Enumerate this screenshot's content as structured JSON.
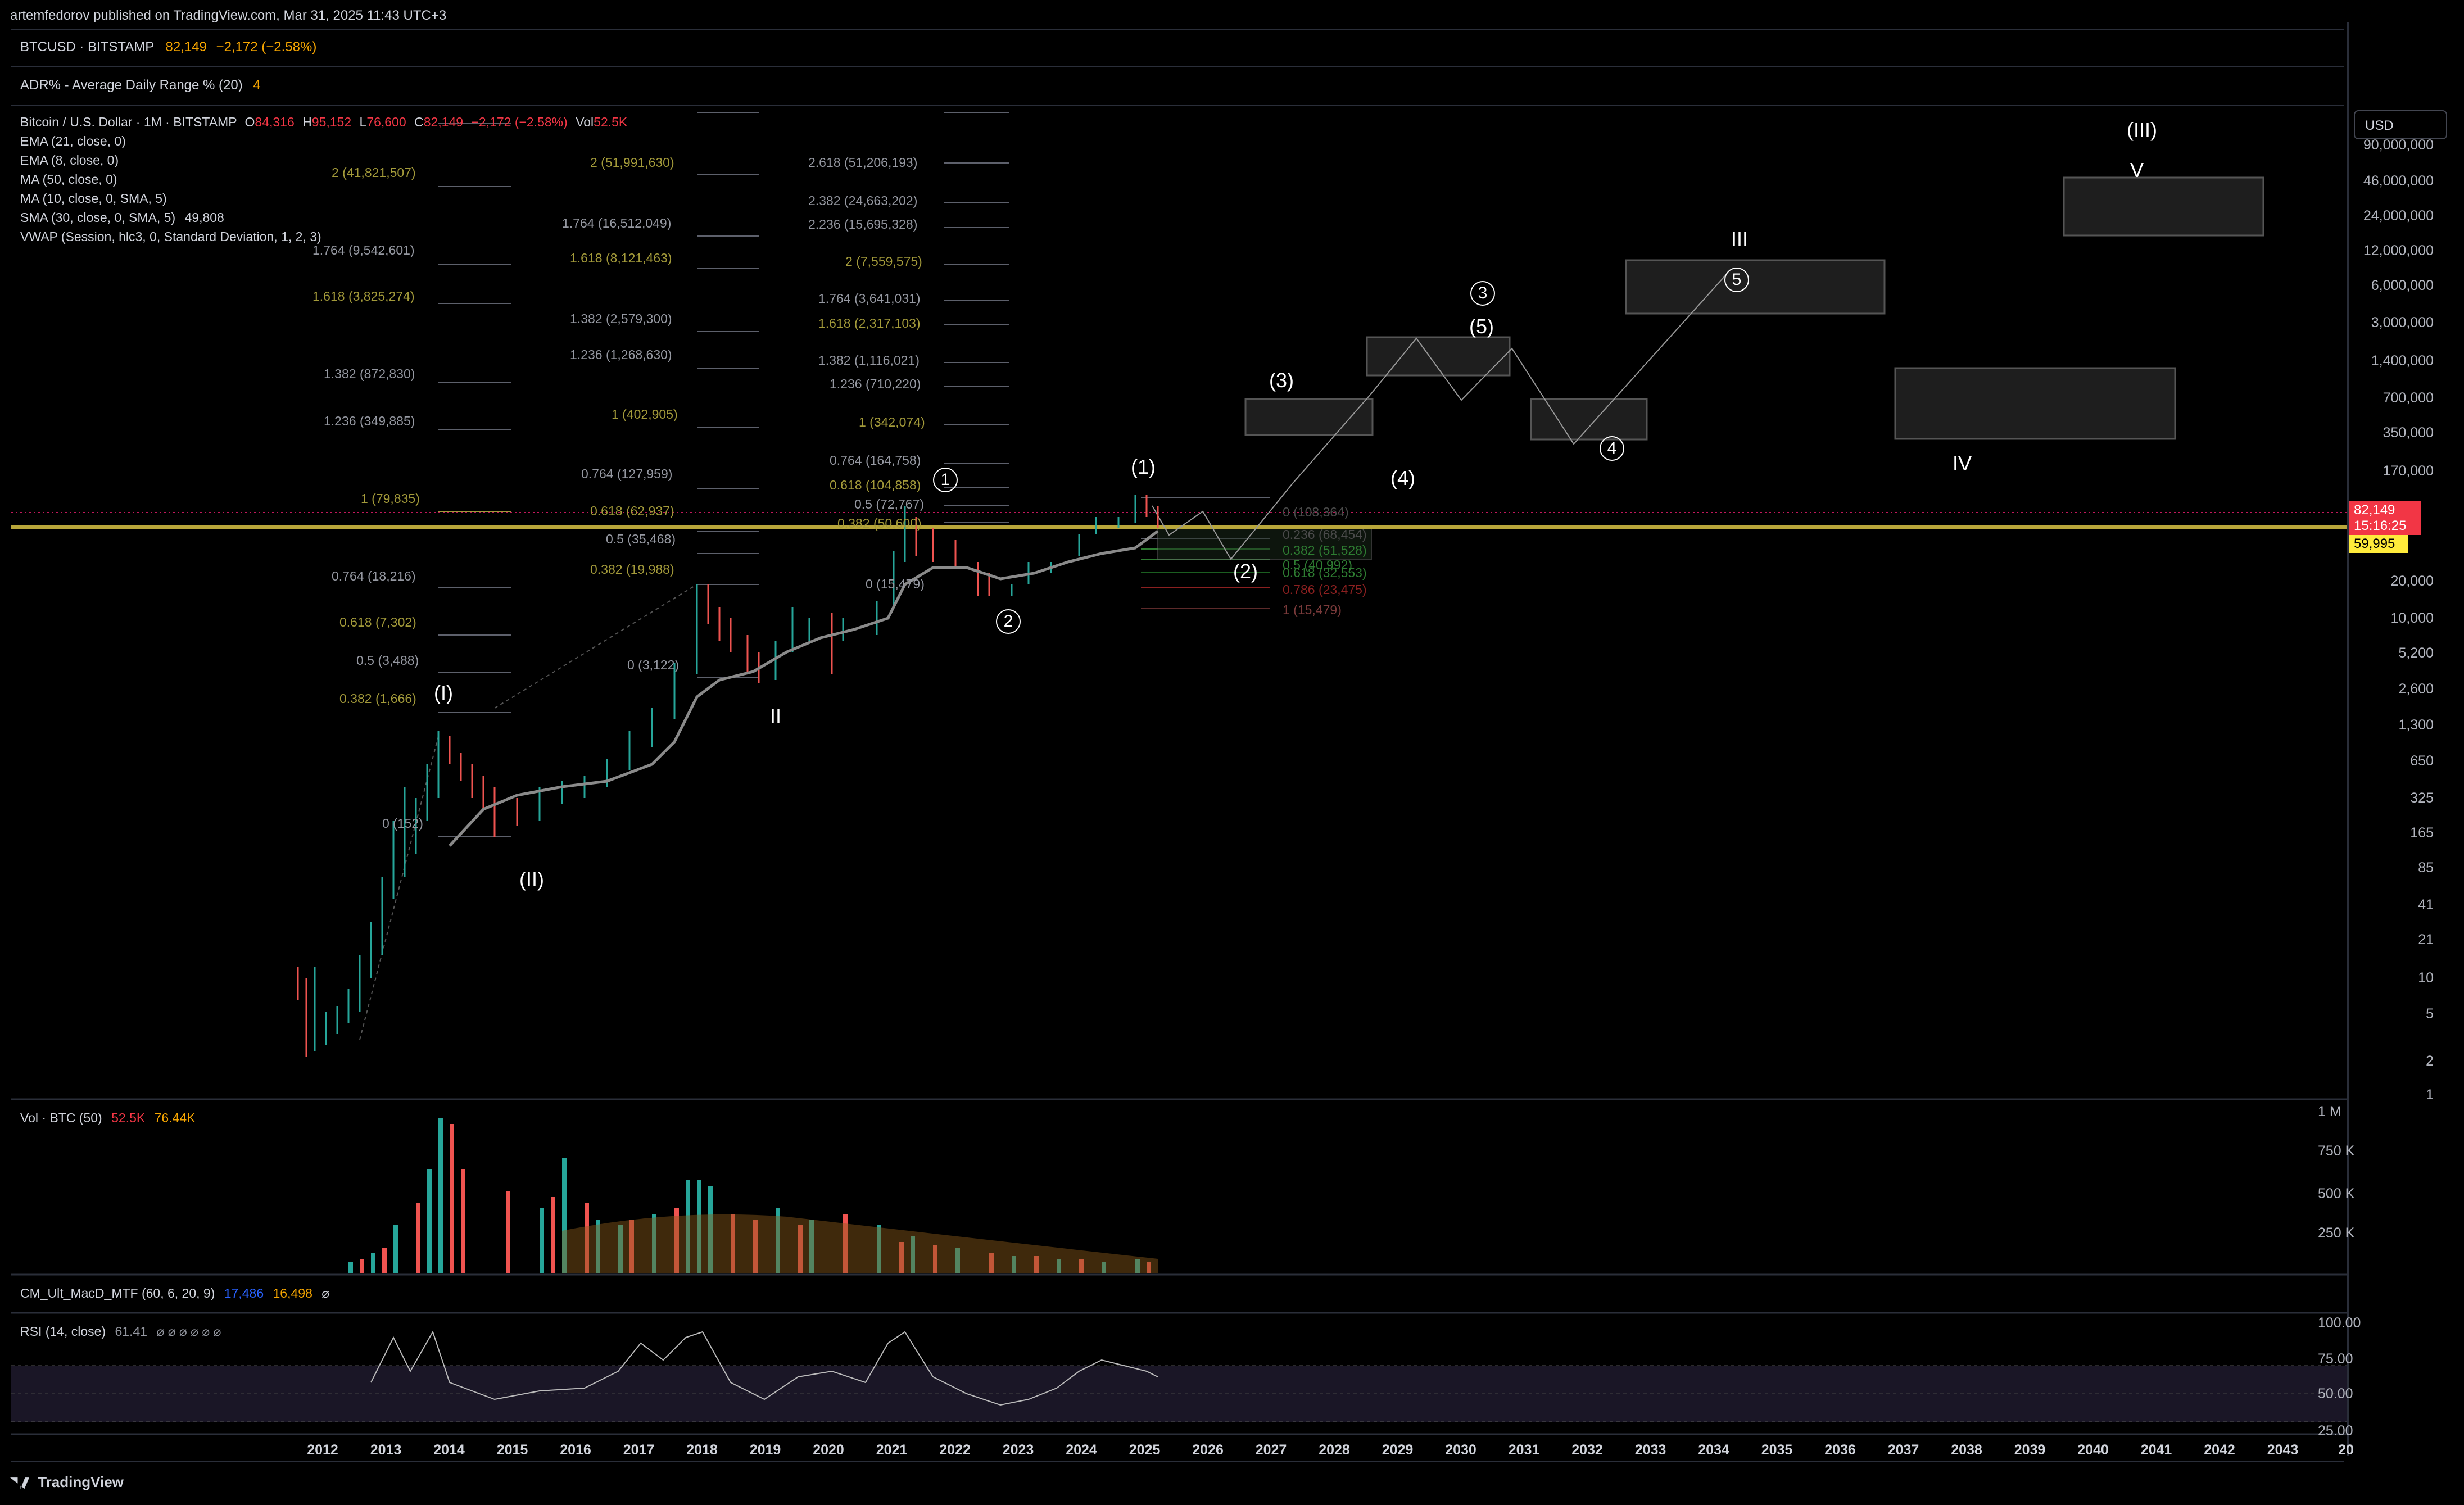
{
  "header": {
    "published": "artemfedorov published on TradingView.com, Mar 31, 2025 11:43 UTC+3"
  },
  "symbol_bar": {
    "symbol": "BTCUSD · BITSTAMP",
    "price": "82,149",
    "change": "−2,172 (−2.58%)"
  },
  "adr": {
    "label": "ADR% - Average Daily Range % (20)",
    "value": "4"
  },
  "legend": {
    "title": "Bitcoin / U.S. Dollar · 1M · BITSTAMP",
    "o_label": "O",
    "o": "84,316",
    "h_label": "H",
    "h": "95,152",
    "l_label": "L",
    "l": "76,600",
    "c_label": "C",
    "c": "82,149",
    "chg": "−2,172 (−2.58%)",
    "vol_label": "Vol",
    "vol": "52.5K",
    "indicators": [
      "EMA (21, close, 0)",
      "EMA (8, close, 0)",
      "MA (50, close, 0)",
      "MA (10, close, 0, SMA, 5)",
      "SMA (30, close, 0, SMA, 5)",
      "VWAP (Session, hlc3, 0, Standard Deviation, 1, 2, 3)"
    ],
    "sma_value": "49,808"
  },
  "volume_pane": {
    "label": "Vol · BTC (50)",
    "v1": "52.5K",
    "v2": "76.44K"
  },
  "macd_pane": {
    "label": "CM_Ult_MacD_MTF (60, 6, 20, 9)",
    "v1": "17,486",
    "v2": "16,498",
    "v3": "⌀"
  },
  "rsi_pane": {
    "label": "RSI (14, close)",
    "value": "61.41",
    "nulls": "⌀  ⌀  ⌀  ⌀  ⌀  ⌀"
  },
  "price_axis": {
    "currency": "USD",
    "ticks": [
      "90,000,000",
      "46,000,000",
      "24,000,000",
      "12,000,000",
      "6,000,000",
      "3,000,000",
      "1,400,000",
      "700,000",
      "350,000",
      "170,000",
      "20,000",
      "10,000",
      "5,200",
      "2,600",
      "1,300",
      "650",
      "325",
      "165",
      "85",
      "41",
      "21",
      "10",
      "5",
      "2",
      "1"
    ],
    "current_price": "82,149",
    "countdown": "15:16:25",
    "line_price": "59,995"
  },
  "volume_axis": {
    "ticks": [
      "1 M",
      "750 K",
      "500 K",
      "250 K"
    ]
  },
  "rsi_axis": {
    "ticks": [
      "100.00",
      "75.00",
      "50.00",
      "25.00"
    ]
  },
  "time_axis": {
    "ticks": [
      "2012",
      "2013",
      "2014",
      "2015",
      "2016",
      "2017",
      "2018",
      "2019",
      "2020",
      "2021",
      "2022",
      "2023",
      "2024",
      "2025",
      "2026",
      "2027",
      "2028",
      "2029",
      "2030",
      "2031",
      "2032",
      "2033",
      "2034",
      "2035",
      "2036",
      "2037",
      "2038",
      "2039",
      "2040",
      "2041",
      "2042",
      "2043",
      "20"
    ]
  },
  "fib_labels": {
    "set1": [
      "2 (41,821,507)",
      "1.764 (9,542,601)",
      "1.618 (3,825,274)",
      "1.382 (872,830)",
      "1.236 (349,885)",
      "1 (79,835)",
      "0.764 (18,216)",
      "0.618 (7,302)",
      "0.5 (3,488)",
      "0.382 (1,666)",
      "0 (152)"
    ],
    "set2": [
      "2 (51,991,630)",
      "1.764 (16,512,049)",
      "1.618 (8,121,463)",
      "1.382 (2,579,300)",
      "1.236 (1,268,630)",
      "1 (402,905)",
      "0.764 (127,959)",
      "0.618 (62,937)",
      "0.5 (35,468)",
      "0.382 (19,988)",
      "0 (3,122)"
    ],
    "set3": [
      "2.618 (51,206,193)",
      "2.382 (24,663,202)",
      "2.236 (15,695,328)",
      "2 (7,559,575)",
      "1.764 (3,641,031)",
      "1.618 (2,317,103)",
      "1.382 (1,116,021)",
      "1.236 (710,220)",
      "1 (342,074)",
      "0.764 (164,758)",
      "0.618 (104,858)",
      "0.5 (72,767)",
      "0.382 (50,600)",
      "0 (15,479)"
    ],
    "set4": [
      "0 (108,364)",
      "0.236 (68,454)",
      "0.382 (51,528)",
      "0.5 (40,992)",
      "0.618 (32,553)",
      "0.786 (23,475)",
      "1 (15,479)"
    ]
  },
  "wave_labels": [
    "(I)",
    "(II)",
    "II",
    "1",
    "2",
    "(1)",
    "(2)",
    "(3)",
    "(4)",
    "(5)",
    "3",
    "4",
    "5",
    "III",
    "IV",
    "V",
    "(III)"
  ],
  "footer": {
    "brand": "TradingView"
  },
  "colors": {
    "up": "#26a69a",
    "down": "#ef5350",
    "accent": "#f7a600",
    "fib_olive": "#a39a3a",
    "ma": "#888888",
    "price_badge": "#f23645",
    "yellow_badge": "#ffeb3b"
  }
}
